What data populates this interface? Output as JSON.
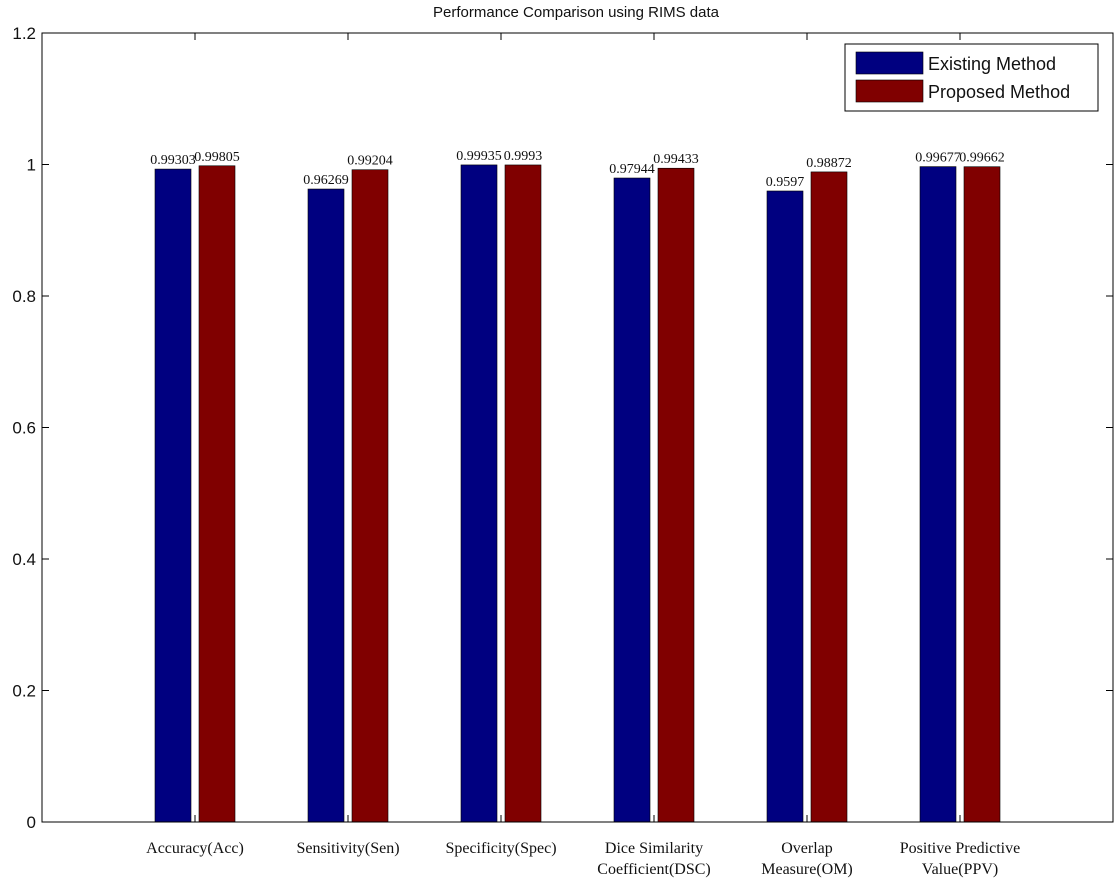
{
  "chart_data": {
    "type": "bar",
    "title": "Performance Comparison using RIMS data",
    "xlabel": "",
    "ylabel": "",
    "ylim": [
      0,
      1.2
    ],
    "yticks": [
      "0",
      "0.2",
      "0.4",
      "0.6",
      "0.8",
      "1",
      "1.2"
    ],
    "grid": false,
    "legend_position": "top-right",
    "categories": [
      [
        "Accuracy(Acc)"
      ],
      [
        "Sensitivity(Sen)"
      ],
      [
        "Specificity(Spec)"
      ],
      [
        "Dice Similarity",
        "Coefficient(DSC)"
      ],
      [
        "Overlap",
        "Measure(OM)"
      ],
      [
        "Positive Predictive",
        "Value(PPV)"
      ]
    ],
    "series": [
      {
        "name": "Existing Method",
        "color": "#000080",
        "values": [
          0.99303,
          0.96269,
          0.99935,
          0.97944,
          0.9597,
          0.99677
        ],
        "labels": [
          "0.99303",
          "0.96269",
          "0.99935",
          "0.97944",
          "0.9597",
          "0.99677"
        ]
      },
      {
        "name": "Proposed Method",
        "color": "#800000",
        "values": [
          0.99805,
          0.99204,
          0.9993,
          0.99433,
          0.98872,
          0.99662
        ],
        "labels": [
          "0.99805",
          "0.99204",
          "0.9993",
          "0.99433",
          "0.98872",
          "0.99662"
        ]
      }
    ]
  }
}
